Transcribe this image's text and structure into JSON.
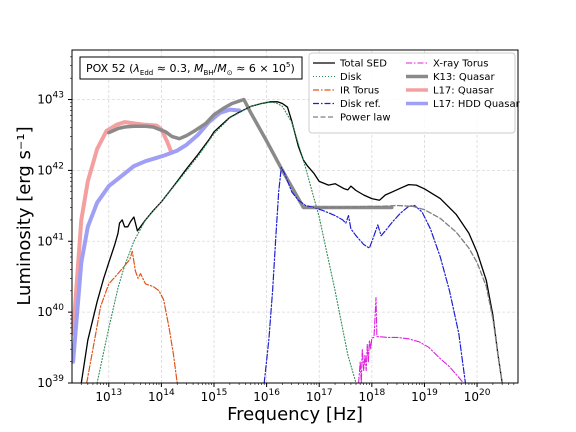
{
  "chart_data": {
    "type": "line",
    "title": "",
    "xlabel": "Frequency [Hz]",
    "ylabel": "Luminosity [erg s⁻¹]",
    "xscale": "log",
    "yscale": "log",
    "xlim": [
      2000000000000.0,
      6e+20
    ],
    "ylim": [
      1e+39,
      5e+43
    ],
    "grid": true,
    "legend_position": "top-right",
    "annotation": {
      "prefix": "POX 52 (",
      "lambda": "λ",
      "lambda_sub": "Edd",
      "lambda_rest": " ≈ 0.3, ",
      "mass": "M",
      "mass_sub": "BH",
      "slash": "/",
      "msun": "M",
      "msun_sub": "⊙",
      "mass_rest": " ≈ 6 × 10",
      "exp": "5",
      "suffix": ")"
    },
    "x_ticks": [
      {
        "value": 10000000000000.0,
        "base": "10",
        "exp": "13"
      },
      {
        "value": 100000000000000.0,
        "base": "10",
        "exp": "14"
      },
      {
        "value": 1000000000000000.0,
        "base": "10",
        "exp": "15"
      },
      {
        "value": 1e+16,
        "base": "10",
        "exp": "16"
      },
      {
        "value": 1e+17,
        "base": "10",
        "exp": "17"
      },
      {
        "value": 1e+18,
        "base": "10",
        "exp": "18"
      },
      {
        "value": 1e+19,
        "base": "10",
        "exp": "19"
      },
      {
        "value": 1e+20,
        "base": "10",
        "exp": "20"
      }
    ],
    "y_ticks": [
      {
        "value": 1e+39,
        "base": "10",
        "exp": "39"
      },
      {
        "value": 1e+40,
        "base": "10",
        "exp": "40"
      },
      {
        "value": 1e+41,
        "base": "10",
        "exp": "41"
      },
      {
        "value": 1e+42,
        "base": "10",
        "exp": "42"
      },
      {
        "value": 1e+43,
        "base": "10",
        "exp": "43"
      }
    ],
    "series": [
      {
        "name": "L17: Quasar",
        "color": "#f4a0a0",
        "width": 4,
        "dash": "",
        "points": [
          [
            2100000000000.0,
            5e+39
          ],
          [
            3000000000000.0,
            2e+41
          ],
          [
            4000000000000.0,
            7e+41
          ],
          [
            6000000000000.0,
            2e+42
          ],
          [
            9000000000000.0,
            3.6e+42
          ],
          [
            14000000000000.0,
            4.4e+42
          ],
          [
            20000000000000.0,
            4.8e+42
          ],
          [
            30000000000000.0,
            4.6e+42
          ],
          [
            50000000000000.0,
            4.4e+42
          ],
          [
            80000000000000.0,
            4.3e+42
          ],
          [
            100000000000000.0,
            3.8e+42
          ],
          [
            130000000000000.0,
            2.5e+42
          ],
          [
            150000000000000.0,
            1.9e+42
          ]
        ]
      },
      {
        "name": "L17: HDD Quasar",
        "color": "#9f9ff5",
        "width": 4,
        "dash": "",
        "points": [
          [
            2100000000000.0,
            2e+39
          ],
          [
            3000000000000.0,
            5e+40
          ],
          [
            4000000000000.0,
            1.6e+41
          ],
          [
            6000000000000.0,
            3.5e+41
          ],
          [
            10000000000000.0,
            6e+41
          ],
          [
            20000000000000.0,
            9e+41
          ],
          [
            30000000000000.0,
            1.15e+42
          ],
          [
            50000000000000.0,
            1.35e+42
          ],
          [
            80000000000000.0,
            1.5e+42
          ],
          [
            120000000000000.0,
            1.65e+42
          ],
          [
            200000000000000.0,
            1.9e+42
          ],
          [
            300000000000000.0,
            2.3e+42
          ],
          [
            500000000000000.0,
            3.2e+42
          ],
          [
            800000000000000.0,
            4.8e+42
          ],
          [
            1300000000000000.0,
            6.5e+42
          ],
          [
            2000000000000000.0,
            7.2e+42
          ],
          [
            3000000000000000.0,
            7e+42
          ]
        ]
      },
      {
        "name": "K13: Quasar",
        "color": "#8a8a8a",
        "width": 3.5,
        "dash": "",
        "points": [
          [
            10000000000000.0,
            3.4e+42
          ],
          [
            15000000000000.0,
            3.9e+42
          ],
          [
            20000000000000.0,
            4.1e+42
          ],
          [
            30000000000000.0,
            4.2e+42
          ],
          [
            50000000000000.0,
            4.2e+42
          ],
          [
            70000000000000.0,
            4.1e+42
          ],
          [
            90000000000000.0,
            3.8e+42
          ],
          [
            120000000000000.0,
            3.5e+42
          ],
          [
            160000000000000.0,
            3e+42
          ],
          [
            220000000000000.0,
            2.8e+42
          ],
          [
            300000000000000.0,
            3.1e+42
          ],
          [
            450000000000000.0,
            3.7e+42
          ],
          [
            700000000000000.0,
            4.6e+42
          ],
          [
            1000000000000000.0,
            6.1e+42
          ],
          [
            1500000000000000.0,
            7.5e+42
          ],
          [
            2200000000000000.0,
            8.8e+42
          ],
          [
            3000000000000000.0,
            9.5e+42
          ],
          [
            3700000000000000.0,
            1e+43
          ],
          [
            5000000000000000.0,
            6.5e+42
          ],
          [
            1e+16,
            2.6e+42
          ],
          [
            2e+16,
            1e+42
          ],
          [
            5e+16,
            3e+41
          ],
          [
            7e+16,
            3e+41
          ],
          [
            2.4e+18,
            3e+41
          ]
        ]
      },
      {
        "name": "Total SED",
        "color": "#000000",
        "width": 1.3,
        "dash": "",
        "points": [
          [
            3000000000000.0,
            1e+39
          ],
          [
            4000000000000.0,
            4e+39
          ],
          [
            6000000000000.0,
            1.4e+40
          ],
          [
            8000000000000.0,
            3e+40
          ],
          [
            10000000000000.0,
            5e+40
          ],
          [
            13000000000000.0,
            9e+40
          ],
          [
            15000000000000.0,
            1.3e+41
          ],
          [
            16000000000000.0,
            1.8e+41
          ],
          [
            18000000000000.0,
            2e+41
          ],
          [
            20000000000000.0,
            1.6e+41
          ],
          [
            23000000000000.0,
            1.6e+41
          ],
          [
            26000000000000.0,
            1.9e+41
          ],
          [
            30000000000000.0,
            2.2e+41
          ],
          [
            35000000000000.0,
            1.4e+41
          ],
          [
            40000000000000.0,
            1.6e+41
          ],
          [
            50000000000000.0,
            2e+41
          ],
          [
            70000000000000.0,
            2.7e+41
          ],
          [
            100000000000000.0,
            3.6e+41
          ],
          [
            150000000000000.0,
            5.3e+41
          ],
          [
            200000000000000.0,
            7e+41
          ],
          [
            300000000000000.0,
            1.05e+42
          ],
          [
            500000000000000.0,
            1.7e+42
          ],
          [
            800000000000000.0,
            2.7e+42
          ],
          [
            1000000000000000.0,
            3.5e+42
          ],
          [
            2000000000000000.0,
            5.6e+42
          ],
          [
            3000000000000000.0,
            6.6e+42
          ],
          [
            5000000000000000.0,
            8e+42
          ],
          [
            8000000000000000.0,
            8.8e+42
          ],
          [
            1.2e+16,
            9.3e+42
          ],
          [
            1.6e+16,
            9.3e+42
          ],
          [
            2e+16,
            8.8e+42
          ],
          [
            2.5e+16,
            7.8e+42
          ],
          [
            3e+16,
            5e+42
          ],
          [
            4e+16,
            2.2e+42
          ],
          [
            5e+16,
            1.4e+42
          ],
          [
            6e+16,
            1.15e+42
          ],
          [
            8e+16,
            9e+41
          ],
          [
            1e+17,
            7e+41
          ],
          [
            1.5e+17,
            6.2e+41
          ],
          [
            2e+17,
            6.5e+41
          ],
          [
            3e+17,
            5.5e+41
          ],
          [
            3.5e+17,
            5.3e+41
          ],
          [
            4e+17,
            6e+41
          ],
          [
            5e+17,
            5.2e+41
          ],
          [
            7e+17,
            4.5e+41
          ],
          [
            1e+18,
            4e+41
          ],
          [
            1.4e+18,
            3.8e+41
          ],
          [
            1.8e+18,
            4.5e+41
          ],
          [
            2.5e+18,
            5e+41
          ],
          [
            3.5e+18,
            5.6e+41
          ],
          [
            5e+18,
            6.3e+41
          ],
          [
            7e+18,
            6.2e+41
          ],
          [
            1e+19,
            5.5e+41
          ],
          [
            2e+19,
            4e+41
          ],
          [
            4e+19,
            2.4e+41
          ],
          [
            7e+19,
            1.3e+41
          ],
          [
            1e+20,
            7e+40
          ],
          [
            1.5e+20,
            2.8e+40
          ],
          [
            2e+20,
            9e+39
          ],
          [
            2.5e+20,
            2.5e+39
          ],
          [
            3e+20,
            1e+39
          ]
        ]
      },
      {
        "name": "Disk",
        "color": "#2e8b57",
        "width": 1.1,
        "dash": "1,2",
        "points": [
          [
            6000000000000.0,
            1e+39
          ],
          [
            10000000000000.0,
            6e+39
          ],
          [
            15000000000000.0,
            2.2e+40
          ],
          [
            20000000000000.0,
            4.5e+40
          ],
          [
            30000000000000.0,
            1e+41
          ],
          [
            50000000000000.0,
            2e+41
          ],
          [
            100000000000000.0,
            3.6e+41
          ],
          [
            200000000000000.0,
            6.8e+41
          ],
          [
            500000000000000.0,
            1.6e+42
          ],
          [
            1000000000000000.0,
            3.3e+42
          ],
          [
            2000000000000000.0,
            5.5e+42
          ],
          [
            5000000000000000.0,
            8e+42
          ],
          [
            1e+16,
            9.2e+42
          ],
          [
            1.5e+16,
            9e+42
          ],
          [
            2e+16,
            8e+42
          ],
          [
            3e+16,
            4.8e+42
          ],
          [
            5e+16,
            1.4e+42
          ],
          [
            1e+17,
            2.2e+41
          ],
          [
            2e+17,
            2e+40
          ],
          [
            3.5e+17,
            2.5e+39
          ],
          [
            5e+17,
            1e+39
          ]
        ]
      },
      {
        "name": "IR Torus",
        "color": "#e2541c",
        "width": 1.2,
        "dash": "6,2,1.5,2",
        "points": [
          [
            3800000000000.0,
            1e+39
          ],
          [
            5000000000000.0,
            3e+39
          ],
          [
            7000000000000.0,
            1.2e+40
          ],
          [
            10000000000000.0,
            2.5e+40
          ],
          [
            15000000000000.0,
            3.5e+40
          ],
          [
            20000000000000.0,
            4.5e+40
          ],
          [
            25000000000000.0,
            5.5e+40
          ],
          [
            28000000000000.0,
            7.2e+40
          ],
          [
            32000000000000.0,
            3.8e+40
          ],
          [
            36000000000000.0,
            3e+40
          ],
          [
            40000000000000.0,
            3.5e+40
          ],
          [
            50000000000000.0,
            2.5e+40
          ],
          [
            70000000000000.0,
            2.3e+40
          ],
          [
            90000000000000.0,
            2e+40
          ],
          [
            110000000000000.0,
            1.5e+40
          ],
          [
            140000000000000.0,
            6e+39
          ],
          [
            170000000000000.0,
            2.5e+39
          ],
          [
            200000000000000.0,
            1e+39
          ]
        ]
      },
      {
        "name": "Disk ref.",
        "color": "#1f1fd2",
        "width": 1.2,
        "dash": "6,2,1.5,2",
        "points": [
          [
            9000000000000000.0,
            1e+39
          ],
          [
            1.1e+16,
            4e+39
          ],
          [
            1.3e+16,
            2e+40
          ],
          [
            1.5e+16,
            1.2e+41
          ],
          [
            1.7e+16,
            5e+41
          ],
          [
            1.9e+16,
            1.1e+42
          ],
          [
            2.2e+16,
            9e+41
          ],
          [
            3e+16,
            5e+41
          ],
          [
            4e+16,
            3.8e+41
          ],
          [
            5.5e+16,
            3.2e+41
          ],
          [
            8e+16,
            3e+41
          ],
          [
            1.2e+17,
            2.7e+41
          ],
          [
            2e+17,
            2.3e+41
          ],
          [
            2.8e+17,
            2e+41
          ],
          [
            3.2e+17,
            1.8e+41
          ],
          [
            3.6e+17,
            2.3e+41
          ],
          [
            4e+17,
            1.5e+41
          ],
          [
            5e+17,
            1.2e+41
          ],
          [
            7e+17,
            9e+40
          ],
          [
            9e+17,
            8e+40
          ],
          [
            1.1e+18,
            1.2e+41
          ],
          [
            1.3e+18,
            1.7e+41
          ],
          [
            1.5e+18,
            1.2e+41
          ],
          [
            1.8e+18,
            1.4e+41
          ],
          [
            2.5e+18,
            1.9e+41
          ],
          [
            3.5e+18,
            2.5e+41
          ],
          [
            5e+18,
            3.1e+41
          ],
          [
            6.5e+18,
            3.2e+41
          ],
          [
            9e+18,
            2.6e+41
          ],
          [
            1.3e+19,
            1.5e+41
          ],
          [
            2e+19,
            6e+40
          ],
          [
            3e+19,
            2e+40
          ],
          [
            4.5e+19,
            5e+39
          ],
          [
            6e+19,
            1e+39
          ]
        ]
      },
      {
        "name": "X-ray Torus",
        "color": "#e01fe0",
        "width": 1.1,
        "dash": "6,2,1.5,2",
        "points": [
          [
            5.6e+17,
            1e+39
          ],
          [
            6e+17,
            2e+39
          ],
          [
            6.3e+17,
            1e+39
          ],
          [
            6.6e+17,
            3e+39
          ],
          [
            7e+17,
            1.5e+39
          ],
          [
            7.4e+17,
            2.5e+39
          ],
          [
            7.8e+17,
            1.5e+39
          ],
          [
            8.2e+17,
            3.5e+39
          ],
          [
            8.6e+17,
            2e+39
          ],
          [
            9e+17,
            4e+39
          ],
          [
            9.5e+17,
            3e+39
          ],
          [
            1e+18,
            4.3e+39
          ],
          [
            1.1e+18,
            4.4e+39
          ],
          [
            1.2e+18,
            1.6e+40
          ],
          [
            1.25e+18,
            4.5e+39
          ],
          [
            1.4e+18,
            4.5e+39
          ],
          [
            2e+18,
            4.4e+39
          ],
          [
            3e+18,
            4.4e+39
          ],
          [
            5e+18,
            4.2e+39
          ],
          [
            8e+18,
            3.8e+39
          ],
          [
            1.2e+19,
            3.2e+39
          ],
          [
            2e+19,
            2.2e+39
          ],
          [
            3e+19,
            1.7e+39
          ],
          [
            4.5e+19,
            1.2e+39
          ],
          [
            5.5e+19,
            1e+39
          ]
        ]
      },
      {
        "name": "Power law",
        "color": "#7f7f7f",
        "width": 1.3,
        "dash": "5,2.5",
        "points": [
          [
            6e+16,
            3e+41
          ],
          [
            3e+17,
            3e+41
          ],
          [
            8e+17,
            3.1e+41
          ],
          [
            1.5e+18,
            3.1e+41
          ],
          [
            3e+18,
            3.2e+41
          ],
          [
            6e+18,
            3.1e+41
          ],
          [
            1e+19,
            2.8e+41
          ],
          [
            2e+19,
            2.1e+41
          ],
          [
            4e+19,
            1.35e+41
          ],
          [
            7e+19,
            8e+40
          ],
          [
            1e+20,
            5e+40
          ],
          [
            1.5e+20,
            2.3e+40
          ],
          [
            2e+20,
            8e+39
          ],
          [
            2.5e+20,
            2.5e+39
          ],
          [
            3e+20,
            1e+39
          ]
        ]
      }
    ]
  }
}
